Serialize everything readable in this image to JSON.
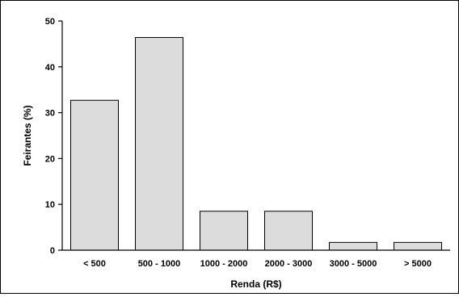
{
  "chart_data": {
    "type": "bar",
    "title": "",
    "xlabel": "Renda (R$)",
    "ylabel": "Feirantes (%)",
    "ylim": [
      0,
      50
    ],
    "yticks": [
      0,
      10,
      20,
      30,
      40,
      50
    ],
    "categories": [
      "< 500",
      "500 - 1000",
      "1000 - 2000",
      "2000 - 3000",
      "3000 - 5000",
      "> 5000"
    ],
    "values": [
      32.7,
      46.4,
      8.5,
      8.5,
      1.7,
      1.7
    ],
    "bar_color": "#dcdcdc",
    "grid": false
  }
}
